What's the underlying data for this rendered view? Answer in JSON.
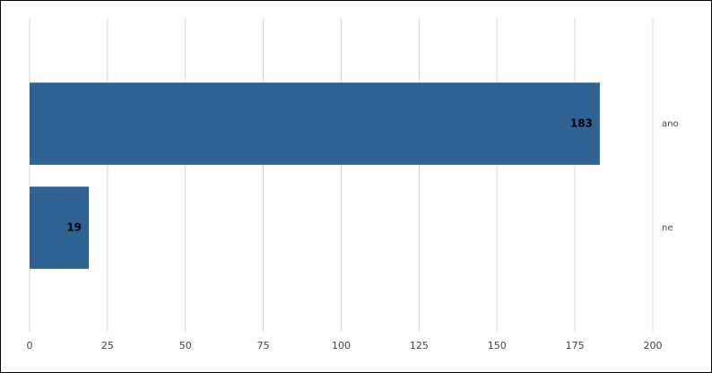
{
  "chart_data": {
    "type": "bar",
    "orientation": "horizontal",
    "categories": [
      "ano",
      "ne"
    ],
    "values": [
      183,
      19
    ],
    "color": "#2e6391",
    "xlim": [
      0,
      200
    ],
    "xticks": [
      0,
      25,
      50,
      75,
      100,
      125,
      150,
      175,
      200
    ],
    "grid": true
  }
}
